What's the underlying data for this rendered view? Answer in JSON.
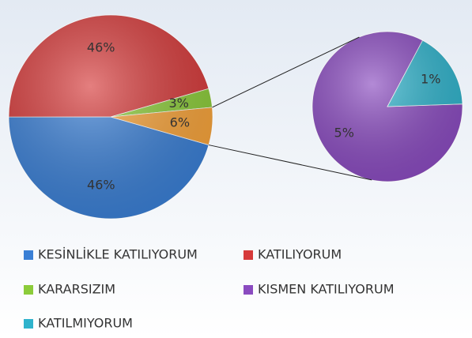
{
  "chart_data": {
    "type": "pie-of-pie",
    "primary": {
      "categories": [
        "KESİNLİKLE KATILIYORUM",
        "KATILIYORUM",
        "KARARSIZIM"
      ],
      "values": [
        46,
        46,
        3
      ],
      "value_labels": [
        "46%",
        "46%",
        "3%"
      ],
      "colors": [
        "#3a7fd5",
        "#d63a3a",
        "#8ccc3a"
      ]
    },
    "other": {
      "value": 6,
      "label": "6%",
      "color": "#f7a33a"
    },
    "secondary": {
      "categories": [
        "KISMEN KATILIYORUM",
        "KATILMIYORUM"
      ],
      "values": [
        5,
        1
      ],
      "value_labels": [
        "5%",
        "1%"
      ],
      "colors": [
        "#8a4bc0",
        "#2fb3cc"
      ]
    }
  }
}
